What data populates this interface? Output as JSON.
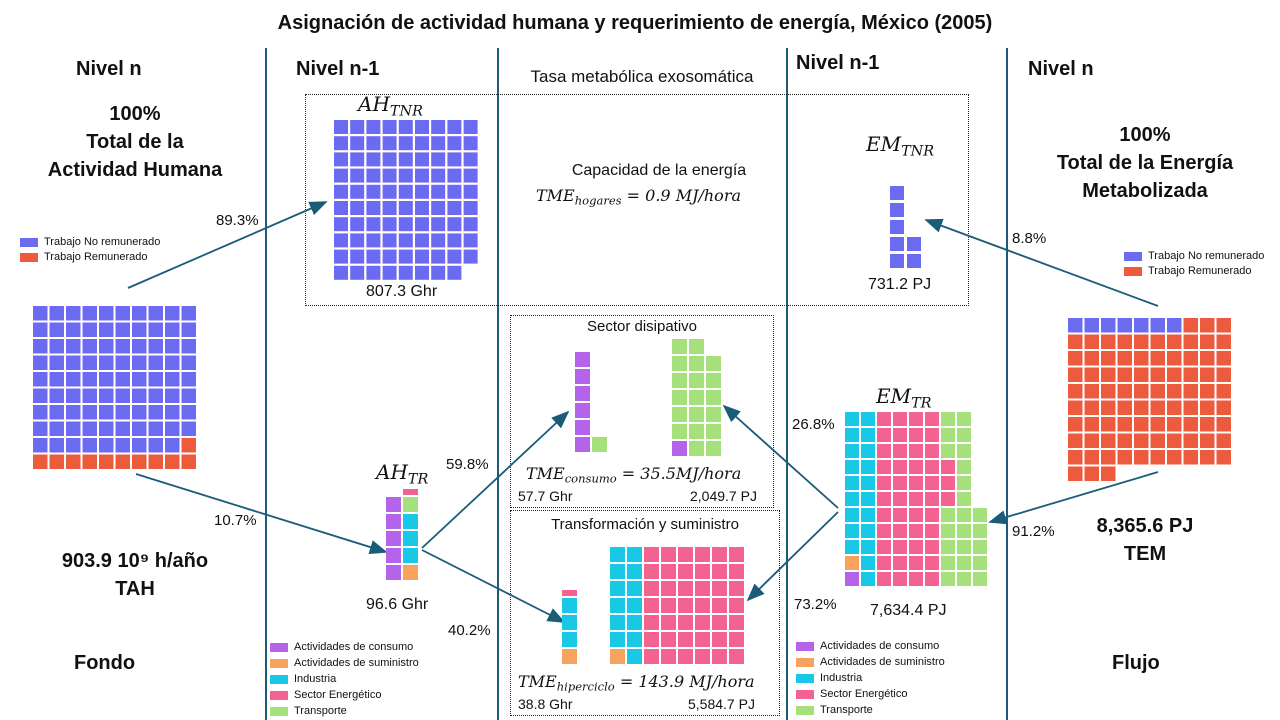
{
  "title": "Asignación de actividad humana y requerimiento de energía, México (2005)",
  "colors": {
    "no_remunerado": "#6b6bf2",
    "remunerado": "#ee5a3c",
    "consumo": "#b563e8",
    "suministro": "#f7a35e",
    "industria": "#19c8e6",
    "energetico": "#f26391",
    "transporte": "#a6e07a",
    "arrow": "#1a5c78"
  },
  "levels": {
    "left_n": "Nivel n",
    "left_n1": "Nivel n-1",
    "right_n1": "Nivel n-1",
    "right_n": "Nivel n"
  },
  "center_title": "Tasa metabólica exosomática",
  "left": {
    "pct": "100%",
    "line1": "Total de la",
    "line2": "Actividad Humana",
    "legend": [
      "Trabajo No remunerado",
      "Trabajo Remunerado"
    ],
    "tah_value": "903.9 10⁹ h/año",
    "tah_label": "TAH",
    "bottom": "Fondo"
  },
  "right": {
    "pct": "100%",
    "line1": "Total de la Energía",
    "line2": "Metabolizada",
    "legend": [
      "Trabajo No remunerado",
      "Trabajo Remunerado"
    ],
    "tem_value": "8,365.6 PJ",
    "tem_label": "TEM",
    "bottom": "Flujo"
  },
  "ah_tnr": {
    "symbol": "AH",
    "sub": "TNR",
    "value": "807.3 Ghr"
  },
  "ah_tr": {
    "symbol": "AH",
    "sub": "TR",
    "value": "96.6 Ghr"
  },
  "em_tnr": {
    "symbol": "EM",
    "sub": "TNR",
    "value": "731.2 PJ"
  },
  "em_tr": {
    "symbol": "EM",
    "sub": "TR",
    "value": "7,634.4 PJ"
  },
  "capacity": {
    "heading": "Capacidad de la energía",
    "tme_sub": "hogares",
    "tme_value": "0.9",
    "tme_unit": "MJ/hora"
  },
  "disipativo": {
    "heading": "Sector disipativo",
    "tme_sub": "consumo",
    "tme_value": "35.5",
    "tme_unit": "MJ/hora",
    "hours": "57.7 Ghr",
    "energy": "2,049.7 PJ"
  },
  "hiperciclo": {
    "heading": "Transformación y suministro",
    "tme_sub": "hiperciclo",
    "tme_value": "143.9",
    "tme_unit": "MJ/hora",
    "hours": "38.8 Ghr",
    "energy": "5,584.7 PJ"
  },
  "percentages": {
    "p893": "89.3%",
    "p107": "10.7%",
    "p598": "59.8%",
    "p402": "40.2%",
    "p88": "8.8%",
    "p912": "91.2%",
    "p268": "26.8%",
    "p732": "73.2%"
  },
  "sector_legend": [
    "Actividades de consumo",
    "Actividades de suministro",
    "Industria",
    "Sector Energético",
    "Transporte"
  ],
  "waffles": {
    "tah": {
      "cols": 10,
      "no_remunerado": 89,
      "remunerado": 11
    },
    "tem": {
      "cols": 10,
      "no_remunerado": 9,
      "remunerado": 91
    },
    "ah_tnr": {
      "cols": 9,
      "count": 89
    },
    "em_tnr": {
      "count": 9
    },
    "ah_tr": {
      "consumo": 6,
      "suministro": 2,
      "industria": 4,
      "transporte": 1,
      "energetico": 1
    },
    "em_tr": {
      "industria": 27,
      "energetico": 46,
      "transporte": 18,
      "consumo": 2,
      "suministro": 1
    },
    "dis_consumo": {
      "consumo": 6
    },
    "dis_transporte": {
      "transporte": 18,
      "consumo": 1
    },
    "hip": {
      "suministro": 1,
      "industria": 4,
      "energetico": 1
    },
    "hip_big": {
      "industria": 16,
      "energetico": 55,
      "suministro": 1
    }
  }
}
